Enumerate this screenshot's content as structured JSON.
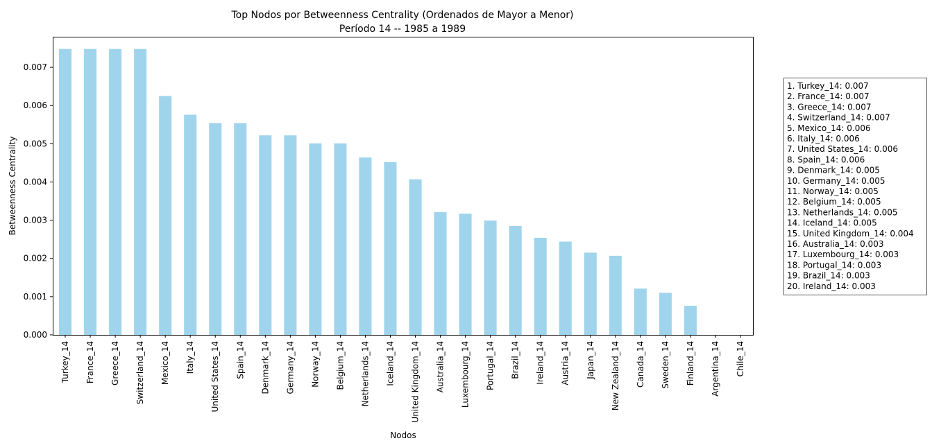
{
  "chart_data": {
    "type": "bar",
    "title": "Top Nodos por Betweenness Centrality (Ordenados de Mayor a Menor)",
    "subtitle": "Período 14 -- 1985 a 1989",
    "xlabel": "Nodos",
    "ylabel": "Betweenness Centrality",
    "ylim": [
      0,
      0.0078
    ],
    "yticks": [
      "0.000",
      "0.001",
      "0.002",
      "0.003",
      "0.004",
      "0.005",
      "0.006",
      "0.007"
    ],
    "ytick_values": [
      0,
      0.001,
      0.002,
      0.003,
      0.004,
      0.005,
      0.006,
      0.007
    ],
    "bar_color": "#9fd4ec",
    "categories": [
      "Turkey_14",
      "France_14",
      "Greece_14",
      "Switzerland_14",
      "Mexico_14",
      "Italy_14",
      "United States_14",
      "Spain_14",
      "Denmark_14",
      "Germany_14",
      "Norway_14",
      "Belgium_14",
      "Netherlands_14",
      "Iceland_14",
      "United Kingdom_14",
      "Australia_14",
      "Luxembourg_14",
      "Portugal_14",
      "Brazil_14",
      "Ireland_14",
      "Austria_14",
      "Japan_14",
      "New Zealand_14",
      "Canada_14",
      "Sweden_14",
      "Finland_14",
      "Argentina_14",
      "Chile_14"
    ],
    "values": [
      0.00748,
      0.00748,
      0.00748,
      0.00748,
      0.00625,
      0.00576,
      0.00554,
      0.00554,
      0.00522,
      0.00522,
      0.00501,
      0.00501,
      0.00464,
      0.00452,
      0.00407,
      0.00321,
      0.00317,
      0.00299,
      0.00285,
      0.00254,
      0.00244,
      0.00215,
      0.00207,
      0.00121,
      0.0011,
      0.00076,
      0.0,
      0.0
    ],
    "legend_position": "right",
    "legend_entries": [
      "1. Turkey_14: 0.007",
      "2. France_14: 0.007",
      "3. Greece_14: 0.007",
      "4. Switzerland_14: 0.007",
      "5. Mexico_14: 0.006",
      "6. Italy_14: 0.006",
      "7. United States_14: 0.006",
      "8. Spain_14: 0.006",
      "9. Denmark_14: 0.005",
      "10. Germany_14: 0.005",
      "11. Norway_14: 0.005",
      "12. Belgium_14: 0.005",
      "13. Netherlands_14: 0.005",
      "14. Iceland_14: 0.005",
      "15. United Kingdom_14: 0.004",
      "16. Australia_14: 0.003",
      "17. Luxembourg_14: 0.003",
      "18. Portugal_14: 0.003",
      "19. Brazil_14: 0.003",
      "20. Ireland_14: 0.003"
    ],
    "grid": false
  }
}
